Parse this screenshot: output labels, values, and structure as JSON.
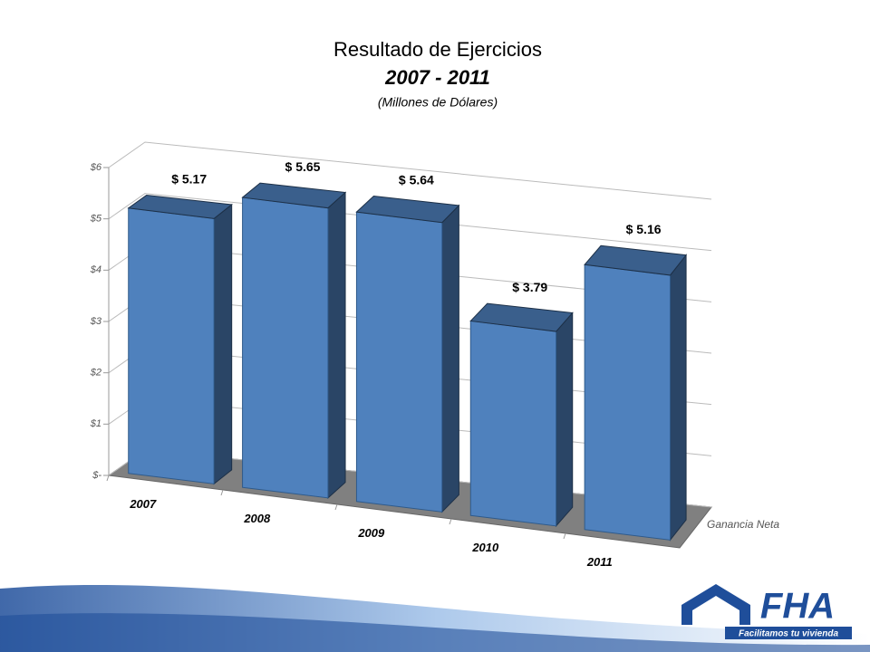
{
  "chart_data": {
    "type": "bar3d",
    "title": "Resultado de Ejercicios",
    "subtitle": "2007 - 2011",
    "unit_note": "(Millones de Dólares)",
    "categories": [
      "2007",
      "2008",
      "2009",
      "2010",
      "2011"
    ],
    "series": [
      {
        "name": "Ganancia Neta",
        "color": "#4f81bd",
        "values": [
          5.17,
          5.65,
          5.64,
          3.79,
          5.16
        ],
        "value_labels": [
          "$ 5.17",
          "$ 5.65",
          "$ 5.64",
          "$ 3.79",
          "$ 5.16"
        ]
      }
    ],
    "ylim": [
      0,
      6
    ],
    "yticks": [
      {
        "value": 0,
        "label": "$-"
      },
      {
        "value": 1,
        "label": "$1"
      },
      {
        "value": 2,
        "label": "$2"
      },
      {
        "value": 3,
        "label": "$3"
      },
      {
        "value": 4,
        "label": "$4"
      },
      {
        "value": 5,
        "label": "$5"
      },
      {
        "value": 6,
        "label": "$6"
      }
    ],
    "grid": true
  },
  "logo": {
    "brand": "FHA",
    "slogan": "Facilitamos tu vivienda"
  }
}
